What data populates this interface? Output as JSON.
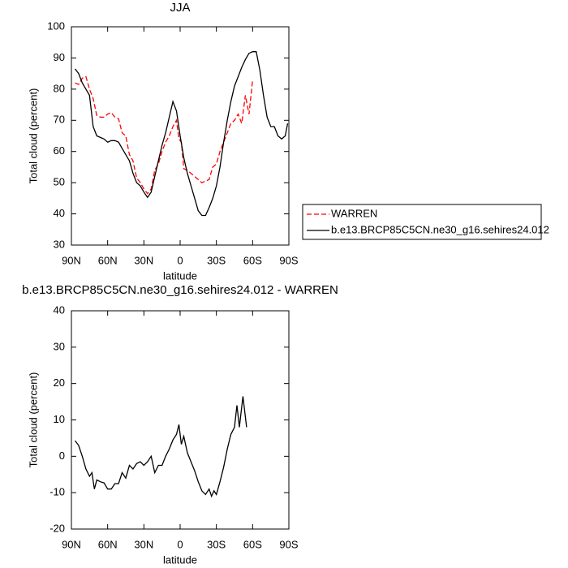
{
  "chart_data": [
    {
      "type": "line",
      "title": "JJA",
      "x_label": "latitude",
      "y_label": "Total cloud (percent)",
      "xlim": [
        90,
        -90
      ],
      "xticks": [
        {
          "value": 90,
          "label": "90N"
        },
        {
          "value": 60,
          "label": "60N"
        },
        {
          "value": 30,
          "label": "30N"
        },
        0,
        {
          "value": -30,
          "label": "30S"
        },
        {
          "value": -60,
          "label": "60S"
        },
        {
          "value": -90,
          "label": "90S"
        }
      ],
      "ylim": [
        30,
        100
      ],
      "yticks": [
        30,
        40,
        50,
        60,
        70,
        80,
        90,
        100
      ],
      "legend": "right",
      "series": [
        {
          "name": "WARREN",
          "color": "#ff0000",
          "line_style": "dashed",
          "x": [
            87,
            84,
            81,
            78,
            75,
            72,
            69,
            66,
            63,
            60,
            57,
            54,
            51,
            48,
            45,
            42,
            39,
            36,
            33,
            30,
            27,
            24,
            21,
            18,
            15,
            12,
            9,
            6,
            3,
            1,
            -1,
            -3,
            -6,
            -9,
            -12,
            -15,
            -18,
            -21,
            -24,
            -27,
            -30,
            -33,
            -36,
            -39,
            -42,
            -45,
            -48,
            -51,
            -54,
            -57,
            -60
          ],
          "values": [
            82,
            81.5,
            83.5,
            84,
            80,
            77,
            71.5,
            71,
            71,
            72,
            72.5,
            71,
            70.5,
            66,
            65,
            59,
            57,
            51.5,
            50,
            48,
            46.5,
            48,
            54,
            56,
            60,
            63,
            65,
            68,
            70,
            64,
            63,
            54.5,
            54,
            53,
            52,
            51,
            50,
            50.5,
            51,
            55,
            56,
            60,
            63,
            66,
            69,
            70,
            72,
            69,
            78,
            72,
            83
          ]
        },
        {
          "name": "b.e13.BRCP85C5CN.ne30_g16.sehires24.012",
          "color": "#000000",
          "line_style": "solid",
          "x": [
            87,
            84,
            81,
            78,
            75,
            72,
            69,
            66,
            63,
            60,
            57,
            54,
            51,
            48,
            45,
            42,
            39,
            36,
            33,
            30,
            27,
            24,
            21,
            18,
            15,
            12,
            9,
            6,
            3,
            0,
            -3,
            -6,
            -9,
            -12,
            -15,
            -18,
            -21,
            -24,
            -27,
            -30,
            -33,
            -36,
            -39,
            -42,
            -45,
            -48,
            -51,
            -54,
            -57,
            -60,
            -63,
            -66,
            -69,
            -72,
            -75,
            -78,
            -81,
            -84,
            -87,
            -89
          ],
          "values": [
            86.5,
            85,
            82,
            80,
            78,
            68,
            65,
            64.5,
            64,
            63,
            63.5,
            63.5,
            63,
            61,
            59,
            57,
            53,
            50,
            49,
            47,
            45.3,
            47,
            52,
            57,
            62,
            66,
            71,
            76,
            73,
            65,
            58,
            53,
            49,
            45,
            41,
            39.5,
            39.5,
            42,
            45,
            49,
            55,
            63,
            70,
            76,
            81,
            84,
            87,
            89.5,
            91.5,
            92,
            92,
            86,
            78,
            71,
            68,
            68,
            65,
            64,
            65,
            69
          ]
        }
      ]
    },
    {
      "type": "line",
      "title": "b.e13.BRCP85C5CN.ne30_g16.sehires24.012 - WARREN",
      "x_label": "latitude",
      "y_label": "Total cloud (percent)",
      "xlim": [
        90,
        -90
      ],
      "xticks": [
        {
          "value": 90,
          "label": "90N"
        },
        {
          "value": 60,
          "label": "60N"
        },
        {
          "value": 30,
          "label": "30N"
        },
        0,
        {
          "value": -30,
          "label": "30S"
        },
        {
          "value": -60,
          "label": "60S"
        },
        {
          "value": -90,
          "label": "90S"
        }
      ],
      "ylim": [
        -20,
        40
      ],
      "yticks": [
        -20,
        -10,
        0,
        10,
        20,
        30,
        40
      ],
      "color": "#000000",
      "x": [
        87,
        84,
        81,
        78,
        75,
        73,
        71,
        69,
        66,
        63,
        60,
        57,
        54,
        51,
        48,
        45,
        42,
        39,
        36,
        33,
        30,
        27,
        24,
        21,
        18,
        15,
        12,
        9,
        6,
        3,
        1,
        -1,
        -3,
        -6,
        -9,
        -12,
        -15,
        -18,
        -21,
        -24,
        -26,
        -28,
        -30,
        -33,
        -36,
        -39,
        -42,
        -45,
        -47,
        -49,
        -52,
        -55
      ],
      "values": [
        4.3,
        3,
        0,
        -3.5,
        -5.5,
        -4.5,
        -9,
        -6.5,
        -7,
        -7.3,
        -9,
        -9,
        -7.5,
        -7.5,
        -4.5,
        -6,
        -2.5,
        -3.5,
        -2,
        -1.5,
        -2.5,
        -1.5,
        0,
        -4.5,
        -2.5,
        -2.5,
        0,
        2,
        4.5,
        6,
        8.7,
        3.3,
        5.5,
        1,
        -1.5,
        -4,
        -7,
        -9.5,
        -10.5,
        -9,
        -11,
        -9.5,
        -10.5,
        -7,
        -3,
        2,
        6,
        8,
        14,
        8,
        16.5,
        8
      ]
    }
  ]
}
